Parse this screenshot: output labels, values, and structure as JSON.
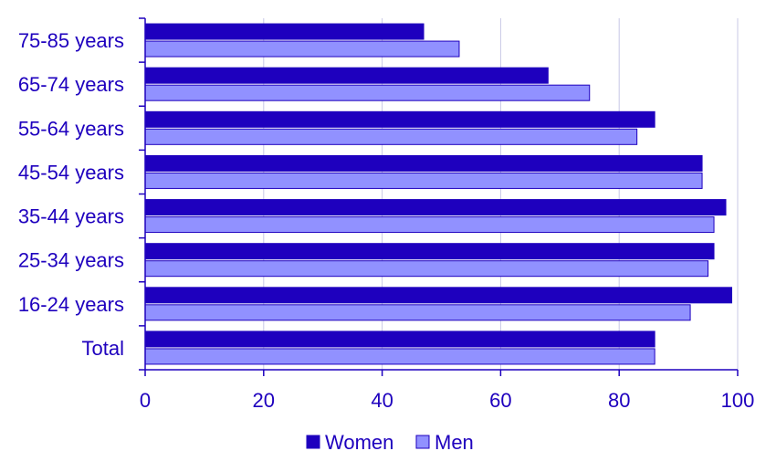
{
  "chart_data": {
    "type": "bar",
    "orientation": "horizontal",
    "categories": [
      "75-85 years",
      "65-74 years",
      "55-64 years",
      "45-54 years",
      "35-44 years",
      "25-34 years",
      "16-24 years",
      "Total"
    ],
    "series": [
      {
        "name": "Women",
        "color": "#1e00be",
        "values": [
          47,
          68,
          86,
          94,
          98,
          96,
          99,
          86
        ]
      },
      {
        "name": "Men",
        "color": "#9191ff",
        "values": [
          53,
          75,
          83,
          94,
          96,
          95,
          92,
          86
        ]
      }
    ],
    "xlim": [
      0,
      100
    ],
    "xticks": [
      0,
      20,
      40,
      60,
      80,
      100
    ],
    "grid": true,
    "legend": "bottom-center",
    "text_color": "#1e00be",
    "grid_color": "#c8c8e6"
  }
}
